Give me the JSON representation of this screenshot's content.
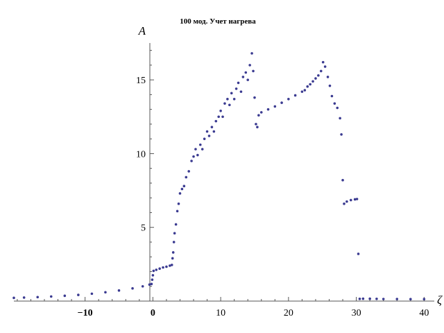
{
  "chart_data": {
    "type": "scatter",
    "title": "100 мод. Учет нагрева",
    "xlabel": "ζ",
    "ylabel": "A",
    "xlim": [
      -20.5,
      41.5
    ],
    "ylim": [
      0,
      17.5
    ],
    "x_ticks": [
      -10,
      0,
      10,
      20,
      30,
      40
    ],
    "x_tick_labels": [
      "−10",
      "0",
      "10",
      "20",
      "30",
      "40"
    ],
    "y_ticks": [
      5,
      10,
      15
    ],
    "y_tick_labels": [
      "5",
      "10",
      "15"
    ],
    "marker_color": "#3b3b91",
    "series": [
      {
        "points": [
          [
            -20.5,
            0.22
          ],
          [
            -19,
            0.24
          ],
          [
            -17,
            0.27
          ],
          [
            -15,
            0.31
          ],
          [
            -13,
            0.36
          ],
          [
            -11,
            0.42
          ],
          [
            -9,
            0.5
          ],
          [
            -7,
            0.6
          ],
          [
            -5,
            0.72
          ],
          [
            -3,
            0.86
          ],
          [
            -1.5,
            1.0
          ],
          [
            -0.5,
            1.12
          ],
          [
            -0.2,
            1.16
          ],
          [
            -0.1,
            1.45
          ],
          [
            0,
            1.75
          ],
          [
            0.1,
            2.05
          ],
          [
            0.5,
            2.12
          ],
          [
            1.0,
            2.2
          ],
          [
            1.5,
            2.28
          ],
          [
            2.0,
            2.33
          ],
          [
            2.5,
            2.4
          ],
          [
            2.8,
            2.45
          ],
          [
            2.9,
            2.9
          ],
          [
            3.0,
            3.3
          ],
          [
            3.1,
            4.0
          ],
          [
            3.2,
            4.6
          ],
          [
            3.4,
            5.2
          ],
          [
            3.6,
            6.1
          ],
          [
            3.8,
            6.6
          ],
          [
            4.0,
            7.3
          ],
          [
            4.3,
            7.6
          ],
          [
            4.6,
            7.8
          ],
          [
            4.9,
            8.4
          ],
          [
            5.3,
            8.8
          ],
          [
            5.7,
            9.5
          ],
          [
            6.0,
            9.8
          ],
          [
            6.3,
            10.3
          ],
          [
            6.6,
            9.9
          ],
          [
            7.0,
            10.6
          ],
          [
            7.3,
            10.3
          ],
          [
            7.6,
            11.0
          ],
          [
            8.0,
            11.5
          ],
          [
            8.3,
            11.2
          ],
          [
            8.7,
            11.8
          ],
          [
            9.0,
            11.5
          ],
          [
            9.3,
            12.2
          ],
          [
            9.7,
            12.5
          ],
          [
            10.0,
            12.9
          ],
          [
            10.3,
            12.5
          ],
          [
            10.6,
            13.4
          ],
          [
            11.0,
            13.7
          ],
          [
            11.3,
            13.3
          ],
          [
            11.6,
            14.1
          ],
          [
            12.0,
            13.7
          ],
          [
            12.3,
            14.4
          ],
          [
            12.6,
            14.8
          ],
          [
            13.0,
            14.2
          ],
          [
            13.3,
            15.2
          ],
          [
            13.7,
            15.5
          ],
          [
            14.0,
            15.0
          ],
          [
            14.3,
            16.0
          ],
          [
            14.6,
            16.8
          ],
          [
            14.8,
            15.6
          ],
          [
            15.0,
            13.8
          ],
          [
            15.2,
            12.0
          ],
          [
            15.4,
            11.8
          ],
          [
            15.6,
            12.6
          ],
          [
            16,
            12.8
          ],
          [
            17,
            13.0
          ],
          [
            18,
            13.2
          ],
          [
            19,
            13.45
          ],
          [
            20,
            13.7
          ],
          [
            21,
            13.95
          ],
          [
            22,
            14.2
          ],
          [
            22.4,
            14.3
          ],
          [
            22.8,
            14.55
          ],
          [
            23.2,
            14.7
          ],
          [
            23.6,
            14.9
          ],
          [
            24.0,
            15.1
          ],
          [
            24.4,
            15.3
          ],
          [
            24.8,
            15.6
          ],
          [
            25.1,
            16.2
          ],
          [
            25.4,
            15.9
          ],
          [
            25.8,
            15.2
          ],
          [
            26.1,
            14.6
          ],
          [
            26.4,
            13.9
          ],
          [
            26.8,
            13.4
          ],
          [
            27.2,
            13.1
          ],
          [
            27.6,
            12.4
          ],
          [
            27.8,
            11.3
          ],
          [
            28.0,
            8.2
          ],
          [
            28.2,
            6.6
          ],
          [
            28.6,
            6.75
          ],
          [
            29.2,
            6.85
          ],
          [
            29.8,
            6.9
          ],
          [
            30.1,
            6.92
          ],
          [
            30.3,
            3.2
          ],
          [
            30.5,
            0.15
          ],
          [
            31,
            0.16
          ],
          [
            32,
            0.16
          ],
          [
            33,
            0.15
          ],
          [
            34,
            0.14
          ],
          [
            36,
            0.14
          ],
          [
            38,
            0.13
          ],
          [
            40,
            0.13
          ]
        ]
      }
    ]
  }
}
